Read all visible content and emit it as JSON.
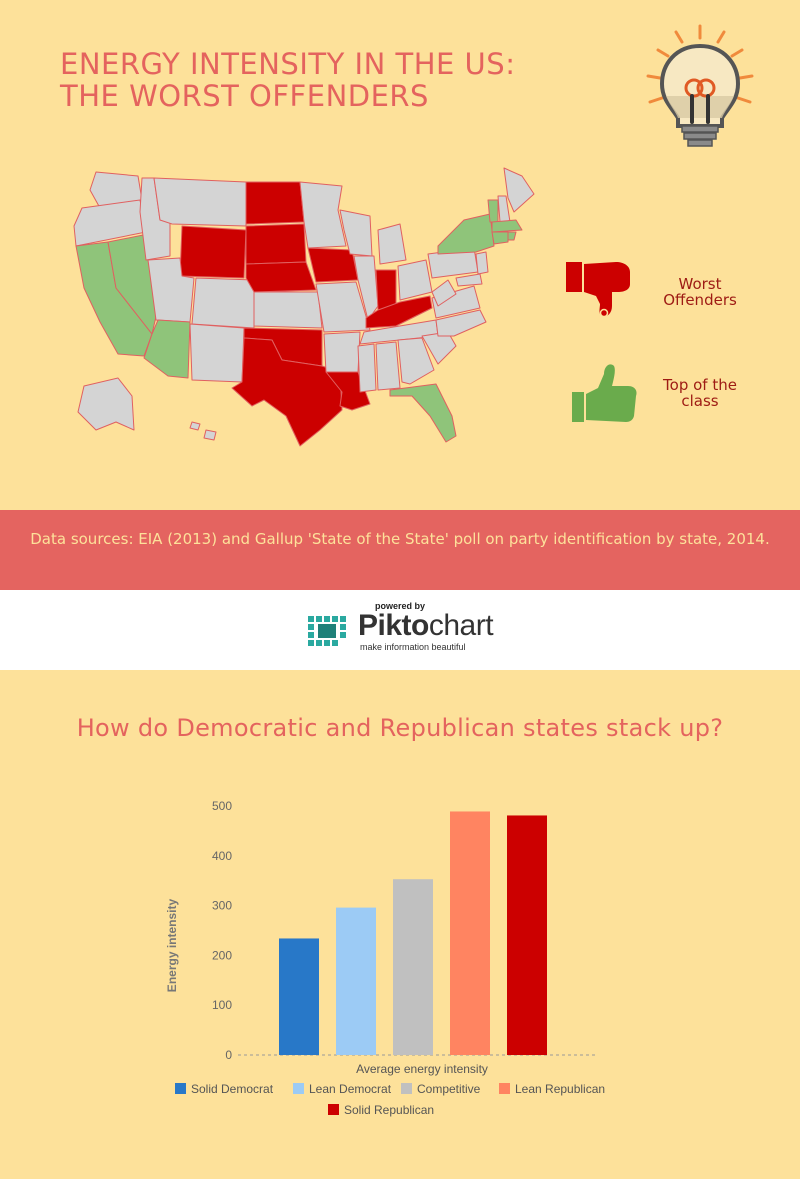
{
  "header": {
    "title_line1": "ENERGY INTENSITY IN THE US:",
    "title_line2": "THE WORST OFFENDERS"
  },
  "legend": {
    "worst_line1": "Worst",
    "worst_line2": "Offenders",
    "top_line1": "Top of the",
    "top_line2": "class"
  },
  "colors": {
    "worst": "#cc0000",
    "top": "#7dc066",
    "neutral": "#d4d4d4",
    "accent": "#e4635e",
    "background": "#fde19a"
  },
  "map": {
    "worst_offenders": [
      "Wyoming",
      "North Dakota",
      "South Dakota",
      "Nebraska",
      "Iowa",
      "Oklahoma",
      "Texas",
      "Louisiana",
      "Indiana",
      "Kentucky"
    ],
    "top_of_class": [
      "California",
      "Nevada",
      "Arizona",
      "New York",
      "Vermont",
      "Massachusetts",
      "Connecticut",
      "Rhode Island",
      "Florida"
    ]
  },
  "sources": {
    "text": "Data sources: EIA (2013) and Gallup 'State of the State' poll on party identification by state, 2014."
  },
  "powered": {
    "label": "powered by",
    "brand_a": "Pikto",
    "brand_b": "chart",
    "tagline": "make information beautiful"
  },
  "chart_section": {
    "title": "How do Democratic and Republican states stack up?"
  },
  "chart_data": {
    "type": "bar",
    "title": "How do Democratic and Republican states stack up?",
    "xlabel": "Average energy intensity",
    "ylabel": "Energy intensity",
    "ylim": [
      0,
      500
    ],
    "yticks": [
      0,
      100,
      200,
      300,
      400,
      500
    ],
    "grid": false,
    "legend_position": "bottom",
    "series": [
      {
        "name": "Solid Democrat",
        "value": 234,
        "color": "#2878c8"
      },
      {
        "name": "Lean Democrat",
        "value": 296,
        "color": "#9ccbf5"
      },
      {
        "name": "Competitive",
        "value": 353,
        "color": "#c0c0c0"
      },
      {
        "name": "Lean Republican",
        "value": 489,
        "color": "#ff8461"
      },
      {
        "name": "Solid Republican",
        "value": 481,
        "color": "#cc0000"
      }
    ]
  }
}
